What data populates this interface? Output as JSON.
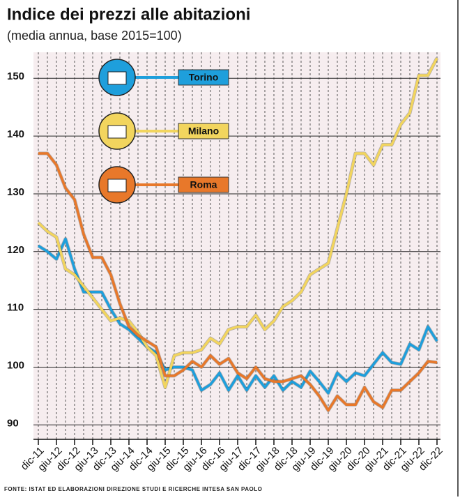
{
  "chart_data": {
    "type": "line",
    "title": "Indice dei prezzi alle abitazioni",
    "subtitle": "(media annua, base 2015=100)",
    "source": "FONTE: ISTAT ED ELABORAZIONI DIREZIONE STUDI E RICERCHE INTESA SAN PAOLO",
    "categories": [
      "dic-11",
      null,
      "giu-12",
      null,
      "dic-12",
      null,
      "giu-13",
      null,
      "dic-13",
      null,
      "giu-14",
      null,
      "dic-14",
      null,
      "giu-15",
      null,
      "dic-15",
      null,
      "giu-16",
      null,
      "dic-16",
      null,
      "giu-17",
      null,
      "dic-17",
      null,
      "giu-18",
      null,
      "dic-18",
      null,
      "giu-19",
      null,
      "dic-19",
      null,
      "giu-20",
      null,
      "dic-20",
      null,
      "giu-21",
      null,
      "dic-21",
      null,
      "giu-22",
      null,
      "dic-22"
    ],
    "series": [
      {
        "name": "Torino",
        "color": "#1e9fdc",
        "values": [
          121,
          120,
          118.7,
          122.2,
          117,
          113,
          113,
          113,
          110,
          107.5,
          106.5,
          105,
          103.5,
          102.5,
          99.5,
          100,
          100,
          99.5,
          96,
          97,
          99,
          96,
          98.5,
          96,
          98.5,
          96.5,
          98.5,
          96,
          97.5,
          96.5,
          99.3,
          97.5,
          95.5,
          99,
          97.5,
          99,
          98.5,
          100.5,
          102.5,
          100.8,
          100.5,
          104,
          103,
          107,
          104.5
        ]
      },
      {
        "name": "Milano",
        "color": "#f2d55e",
        "values": [
          125,
          123.5,
          122.5,
          117,
          116,
          114,
          112,
          110,
          108,
          108.5,
          108,
          106,
          103.5,
          102,
          96.5,
          102,
          102.5,
          102.5,
          103,
          105,
          104,
          106.5,
          107,
          107,
          109,
          106.5,
          108,
          110.5,
          111.5,
          113,
          116,
          117,
          118,
          124,
          130,
          137,
          137,
          135,
          138.5,
          138.5,
          142,
          144,
          150.5,
          150.5,
          153.5
        ]
      },
      {
        "name": "Roma",
        "color": "#e8782a",
        "values": [
          137,
          137,
          135,
          131,
          129,
          123,
          119,
          119,
          116,
          111,
          107,
          105.5,
          104.5,
          103.5,
          98.5,
          98.5,
          99.5,
          101,
          100,
          102,
          100.5,
          101.5,
          99,
          98,
          100,
          98,
          97.5,
          97.5,
          98,
          98.5,
          97,
          95,
          92.5,
          95,
          93.5,
          93.5,
          96.5,
          94,
          93,
          96,
          96,
          97.5,
          99,
          101,
          100.8
        ]
      }
    ],
    "ylim": [
      87.5,
      154.5
    ],
    "yticks": [
      90,
      100,
      110,
      120,
      130,
      140,
      150
    ],
    "grid": true
  }
}
